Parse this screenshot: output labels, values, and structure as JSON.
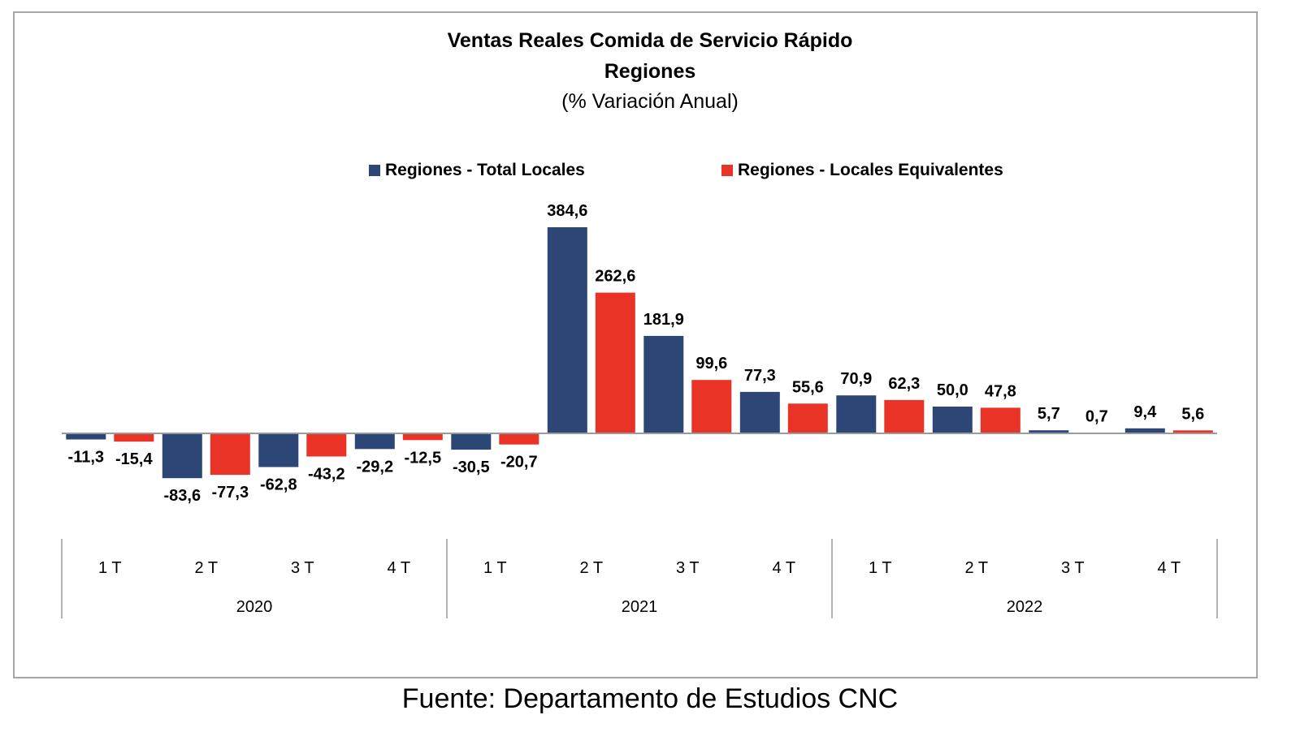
{
  "chart_data": {
    "type": "bar",
    "title": "Ventas Reales Comida de Servicio Rápido",
    "title_line2": "Regiones",
    "subtitle": "(% Variación Anual)",
    "source": "Fuente: Departamento de Estudios CNC",
    "legend_placement": "top-center",
    "grid": false,
    "ylim": [
      -100,
      400
    ],
    "categories": [
      "1 T",
      "2 T",
      "3 T",
      "4 T",
      "1 T",
      "2 T",
      "3 T",
      "4 T",
      "1 T",
      "2 T",
      "3 T",
      "4 T"
    ],
    "groups": [
      {
        "label": "2020",
        "count": 4
      },
      {
        "label": "2021",
        "count": 4
      },
      {
        "label": "2022",
        "count": 4
      }
    ],
    "series": [
      {
        "name": "Regiones - Total Locales",
        "color": "#2c4776",
        "values": [
          -11.3,
          -83.6,
          -62.8,
          -29.2,
          -30.5,
          384.6,
          181.9,
          77.3,
          70.9,
          50.0,
          5.7,
          9.4
        ],
        "labels": [
          "-11,3",
          "-83,6",
          "-62,8",
          "-29,2",
          "-30,5",
          "384,6",
          "181,9",
          "77,3",
          "70,9",
          "50,0",
          "5,7",
          "9,4"
        ]
      },
      {
        "name": "Regiones - Locales Equivalentes",
        "color": "#e83326",
        "values": [
          -15.4,
          -77.3,
          -43.2,
          -12.5,
          -20.7,
          262.6,
          99.6,
          55.6,
          62.3,
          47.8,
          0.7,
          5.6
        ],
        "labels": [
          "-15,4",
          "-77,3",
          "-43,2",
          "-12,5",
          "-20,7",
          "262,6",
          "99,6",
          "55,6",
          "62,3",
          "47,8",
          "0,7",
          "5,6"
        ]
      }
    ]
  }
}
